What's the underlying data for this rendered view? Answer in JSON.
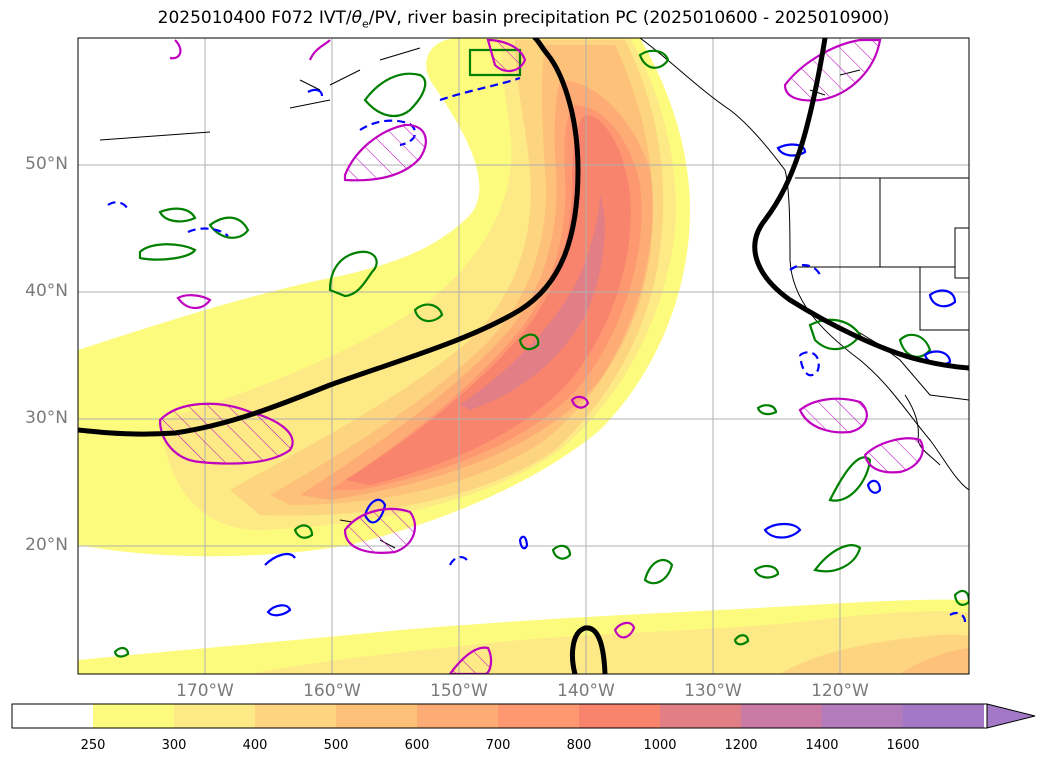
{
  "title": {
    "prefix": "2025010400 F072 IVT/",
    "theta": "θ",
    "sub": "e",
    "suffix": "/PV, river basin precipitation PC (2025010600 - 2025010900)"
  },
  "map": {
    "lat_labels": [
      "50°N",
      "40°N",
      "30°N",
      "20°N"
    ],
    "lon_labels": [
      "170°W",
      "160°W",
      "150°W",
      "140°W",
      "130°W",
      "120°W"
    ]
  },
  "colorbar": {
    "levels": [
      "250",
      "300",
      "400",
      "500",
      "600",
      "700",
      "800",
      "1000",
      "1200",
      "1400",
      "1600"
    ],
    "colors": [
      "#ffffff",
      "#fdfb7e",
      "#fde985",
      "#fdd47f",
      "#fdc17a",
      "#fdac75",
      "#fd9871",
      "#f9846d",
      "#e27f86",
      "#c97ba5",
      "#b27bbb",
      "#a379c7"
    ]
  },
  "colors": {
    "ivt_black": "#000000",
    "pv_magenta": "#c000c0",
    "theta_green": "#008000",
    "theta_blue": "#0000ff",
    "grid": "#b0b0b0",
    "coast": "#000000"
  }
}
